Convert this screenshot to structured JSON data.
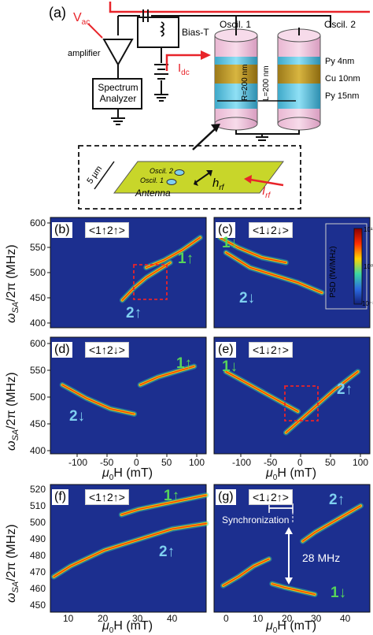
{
  "panel_a": {
    "tag": "(a)",
    "labels": {
      "vac": "V",
      "vac_sub": "ac",
      "idc": "I",
      "idc_sub": "dc",
      "amplifier": "amplifier",
      "spectrum_analyzer_line1": "Spectrum",
      "spectrum_analyzer_line2": "Analyzer",
      "bias_t": "Bias-T",
      "oscil1": "Oscil. 1",
      "oscil2": "Oscil. 2",
      "py4": "Py 4nm",
      "cu10": "Cu 10nm",
      "py15": "Py 15nm",
      "r200": "R=200 nm",
      "l200": "L=200 nm",
      "scale": "5 µm",
      "inset_osc2": "Oscil. 2",
      "inset_osc1": "Oscil. 1",
      "antenna": "Antenna",
      "hrf": "h",
      "hrf_sub": "rf",
      "irf": "I",
      "irf_sub": "rf"
    }
  },
  "panels": {
    "b": {
      "tag": "(b)",
      "state": "<1↑2↑>",
      "arrows": [
        "1↑",
        "2↑"
      ]
    },
    "c": {
      "tag": "(c)",
      "state": "<1↓2↓>",
      "arrows": [
        "1↓",
        "2↓"
      ]
    },
    "d": {
      "tag": "(d)",
      "state": "<1↑2↓>",
      "arrows": [
        "1↑",
        "2↓"
      ]
    },
    "e": {
      "tag": "(e)",
      "state": "<1↓2↑>",
      "arrows": [
        "1↓",
        "2↑"
      ]
    },
    "f": {
      "tag": "(f)",
      "state": "<1↑2↑>",
      "arrows": [
        "1↑",
        "2↑"
      ]
    },
    "g": {
      "tag": "(g)",
      "state": "<1↓2↑>",
      "arrows": [
        "2↑",
        "1↓"
      ],
      "sync": "Synchronization",
      "gap": "28 MHz"
    }
  },
  "colorbar": {
    "label": "PSD (fW/MHz)",
    "ticks": [
      "10¹",
      "10⁰",
      "10⁻¹"
    ]
  },
  "axes": {
    "ylabel": "ω_SA/2π (MHz)",
    "ylabel_main": "ω",
    "ylabel_sub": "SA",
    "ylabel_rest": "/2π (MHz)",
    "xlabel_main": "μ",
    "xlabel_sub": "0",
    "xlabel_rest": "H (mT)",
    "row1_yticks": [
      "600",
      "550",
      "500",
      "450",
      "400"
    ],
    "row2_yticks": [
      "600",
      "550",
      "500",
      "450",
      "400"
    ],
    "row3_yticks": [
      "520",
      "510",
      "500",
      "490",
      "480",
      "470",
      "460",
      "450"
    ],
    "row2_xticks": [
      "-100",
      "-50",
      "0",
      "50",
      "100"
    ],
    "row3_xticks_left": [
      "10",
      "20",
      "30",
      "40"
    ],
    "row3_xticks_right": [
      "0",
      "10",
      "20",
      "30",
      "40"
    ]
  },
  "colors": {
    "heat_bg": "#1c2f8f",
    "accent_red": "#e8242a",
    "arrow_green": "#56d35a",
    "arrow_blue": "#7fd0f0",
    "antenna": "#c8d62a"
  },
  "chart_data": [
    {
      "type": "heatmap",
      "panel": "b",
      "xlim": [
        -120,
        140
      ],
      "ylim": [
        390,
        610
      ],
      "series": [
        {
          "name": "1↑",
          "x": [
            40,
            70,
            100,
            130
          ],
          "y": [
            510,
            525,
            545,
            570
          ]
        },
        {
          "name": "2↑",
          "x": [
            0,
            20,
            40,
            60,
            80
          ],
          "y": [
            445,
            470,
            490,
            505,
            520
          ]
        }
      ]
    },
    {
      "type": "heatmap",
      "panel": "c",
      "xlim": [
        -120,
        140
      ],
      "ylim": [
        390,
        610
      ],
      "series": [
        {
          "name": "1↓",
          "x": [
            -110,
            -80,
            -40,
            0
          ],
          "y": [
            570,
            550,
            530,
            520
          ]
        },
        {
          "name": "2↓",
          "x": [
            -100,
            -60,
            -20,
            20,
            60
          ],
          "y": [
            540,
            510,
            495,
            480,
            460
          ]
        }
      ]
    },
    {
      "type": "heatmap",
      "panel": "d",
      "xlim": [
        -120,
        140
      ],
      "ylim": [
        390,
        610
      ],
      "series": [
        {
          "name": "1↑",
          "x": [
            30,
            60,
            90,
            120
          ],
          "y": [
            520,
            535,
            545,
            555
          ]
        },
        {
          "name": "2↓",
          "x": [
            -100,
            -60,
            -20,
            20
          ],
          "y": [
            520,
            495,
            475,
            465
          ]
        }
      ]
    },
    {
      "type": "heatmap",
      "panel": "e",
      "xlim": [
        -120,
        140
      ],
      "ylim": [
        390,
        610
      ],
      "series": [
        {
          "name": "1↓",
          "x": [
            -100,
            -60,
            -20,
            20
          ],
          "y": [
            545,
            520,
            495,
            470
          ]
        },
        {
          "name": "2↑",
          "x": [
            0,
            40,
            80,
            120
          ],
          "y": [
            430,
            470,
            510,
            545
          ]
        }
      ]
    },
    {
      "type": "heatmap",
      "panel": "f",
      "xlim": [
        4,
        50
      ],
      "ylim": [
        450,
        522
      ],
      "series": [
        {
          "name": "1↑",
          "x": [
            25,
            30,
            35,
            40,
            45,
            50
          ],
          "y": [
            505,
            508,
            510,
            512,
            514,
            516
          ]
        },
        {
          "name": "2↑",
          "x": [
            5,
            10,
            20,
            30,
            40,
            50
          ],
          "y": [
            470,
            476,
            485,
            491,
            497,
            500
          ]
        }
      ]
    },
    {
      "type": "heatmap",
      "panel": "g",
      "xlim": [
        -3,
        48
      ],
      "ylim": [
        450,
        522
      ],
      "series": [
        {
          "name": "2↑",
          "x": [
            26,
            30,
            35,
            40,
            45
          ],
          "y": [
            490,
            495,
            500,
            505,
            510
          ]
        },
        {
          "name": "1↓",
          "x": [
            16,
            20,
            25,
            30
          ],
          "y": [
            466,
            464,
            462,
            460
          ]
        },
        {
          "name": "sync",
          "x": [
            0,
            5,
            10,
            15
          ],
          "y": [
            465,
            470,
            476,
            480
          ]
        }
      ]
    }
  ]
}
